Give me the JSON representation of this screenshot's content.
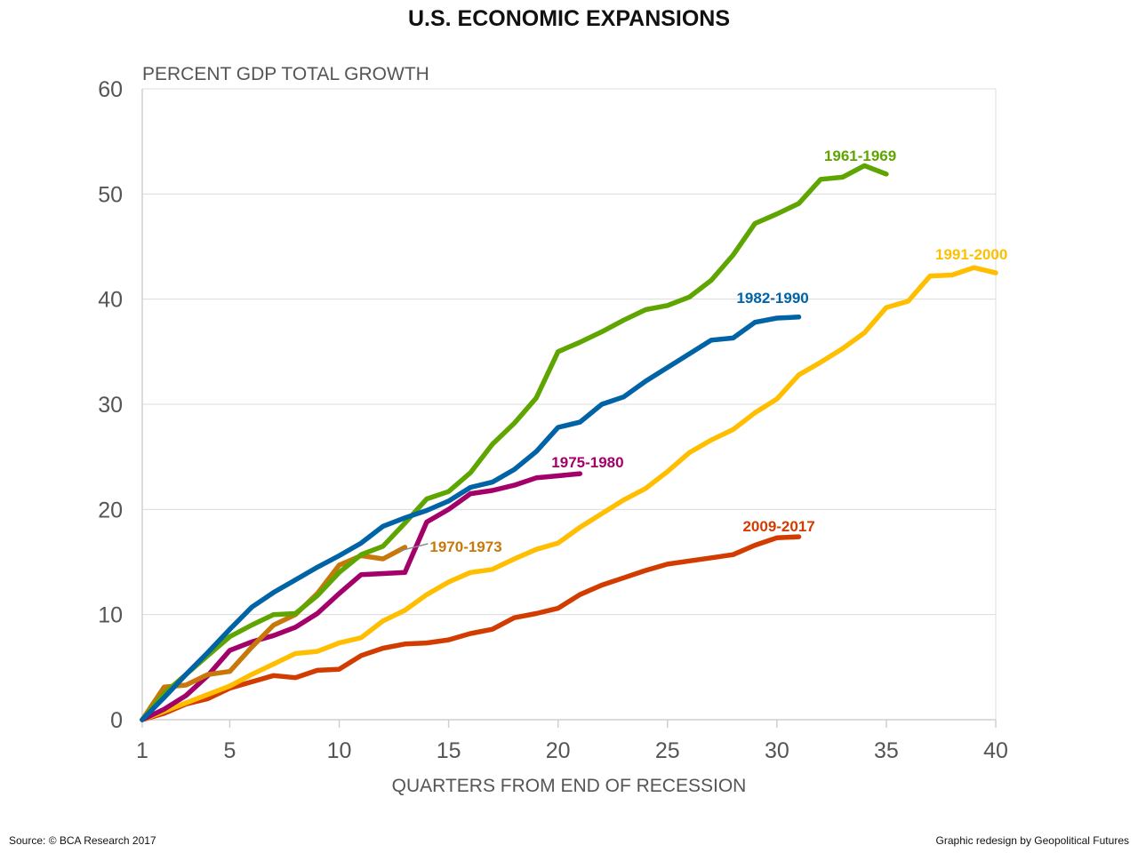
{
  "chart_data": {
    "type": "line",
    "title": "U.S. ECONOMIC EXPANSIONS",
    "ylabel": "PERCENT GDP TOTAL GROWTH",
    "xlabel": "QUARTERS FROM END OF RECESSION",
    "xlim": [
      1,
      40
    ],
    "ylim": [
      0,
      60
    ],
    "x_ticks": [
      1,
      5,
      10,
      15,
      20,
      25,
      30,
      35,
      40
    ],
    "y_ticks": [
      0,
      10,
      20,
      30,
      40,
      50,
      60
    ],
    "grid": "horizontal",
    "legend": "direct labels at line ends",
    "series": [
      {
        "name": "1961-1969",
        "color": "#5fa500",
        "values": [
          0,
          2.5,
          4.3,
          6.1,
          7.9,
          9.0,
          10.0,
          10.1,
          11.8,
          14.0,
          15.7,
          16.5,
          18.7,
          21.0,
          21.7,
          23.5,
          26.2,
          28.2,
          30.6,
          35.0,
          35.9,
          36.9,
          38.0,
          39.0,
          39.4,
          40.2,
          41.8,
          44.2,
          47.2,
          48.1,
          49.1,
          51.4,
          51.6,
          52.7,
          51.9
        ]
      },
      {
        "name": "1982-1990",
        "color": "#0063a6",
        "values": [
          0,
          2.1,
          4.3,
          6.4,
          8.6,
          10.7,
          12.1,
          13.3,
          14.5,
          15.6,
          16.8,
          18.4,
          19.2,
          19.9,
          20.8,
          22.1,
          22.6,
          23.8,
          25.5,
          27.8,
          28.3,
          30.0,
          30.7,
          32.2,
          33.5,
          34.8,
          36.1,
          36.3,
          37.8,
          38.2,
          38.3
        ]
      },
      {
        "name": "1991-2000",
        "color": "#ffbf00",
        "values": [
          0,
          0.8,
          1.6,
          2.4,
          3.2,
          4.3,
          5.3,
          6.3,
          6.5,
          7.3,
          7.8,
          9.4,
          10.4,
          11.9,
          13.1,
          14.0,
          14.3,
          15.3,
          16.2,
          16.8,
          18.3,
          19.6,
          20.9,
          22.0,
          23.6,
          25.4,
          26.6,
          27.6,
          29.2,
          30.5,
          32.8,
          34.0,
          35.3,
          36.8,
          39.2,
          39.8,
          42.2,
          42.3,
          43.0,
          42.5
        ]
      },
      {
        "name": "1975-1980",
        "color": "#a3006a",
        "values": [
          0,
          1.0,
          2.3,
          4.2,
          6.6,
          7.4,
          8.0,
          8.8,
          10.1,
          12.0,
          13.8,
          13.9,
          14.0,
          18.8,
          20.0,
          21.5,
          21.8,
          22.3,
          23.0,
          23.2,
          23.4
        ]
      },
      {
        "name": "1970-1973",
        "color": "#c8780a",
        "values": [
          0,
          3.1,
          3.3,
          4.3,
          4.6,
          6.9,
          9.0,
          10.0,
          12.0,
          14.7,
          15.6,
          15.3,
          16.4
        ]
      },
      {
        "name": "2009-2017",
        "color": "#d23c00",
        "values": [
          0,
          0.6,
          1.5,
          2.0,
          3.0,
          3.6,
          4.2,
          4.0,
          4.7,
          4.8,
          6.1,
          6.8,
          7.2,
          7.3,
          7.6,
          8.2,
          8.6,
          9.7,
          10.1,
          10.6,
          11.9,
          12.8,
          13.5,
          14.2,
          14.8,
          15.1,
          15.4,
          15.7,
          16.6,
          17.3,
          17.4
        ]
      }
    ]
  },
  "footer": {
    "source": "Source: © BCA Research 2017",
    "credit": "Graphic redesign by Geopolitical Futures"
  }
}
